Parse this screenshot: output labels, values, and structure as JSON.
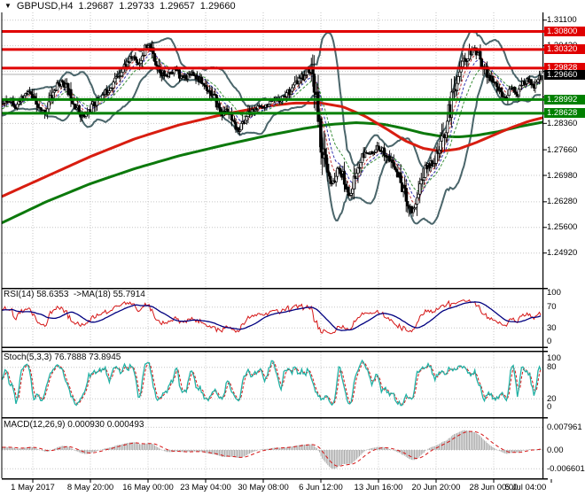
{
  "window": {
    "symbol_timeframe": "GBPUSD,H4",
    "dropdown_glyph": "▼"
  },
  "chart_data": {
    "type": "candlestick",
    "symbol": "GBPUSD",
    "timeframe": "H4",
    "ohlc": {
      "open": "1.29687",
      "high": "1.29733",
      "low": "1.29657",
      "close": "1.29660"
    },
    "current_price": "1.29660",
    "price_axis": {
      "visible_tick_labels": [
        "1.31100",
        "1.30420",
        "1.28360",
        "1.27660",
        "1.26980",
        "1.26280",
        "1.25600",
        "1.24920"
      ],
      "grid_prices": [
        1.311,
        1.3042,
        1.2974,
        1.2906,
        1.2836,
        1.2766,
        1.2698,
        1.2628,
        1.256,
        1.2492
      ],
      "range_top": 1.3131,
      "range_bottom": 1.2402
    },
    "time_axis": {
      "labels": [
        "1 May 2017",
        "8 May 20:00",
        "16 May 00:00",
        "23 May 04:00",
        "30 May 08:00",
        "6 Jun 12:00",
        "13 Jun 16:00",
        "20 Jun 20:00",
        "28 Jun 00:00",
        "5 Jul 04:00"
      ]
    },
    "horizontal_lines": [
      {
        "price": 1.308,
        "label": "1.30800",
        "color": "#e00000",
        "kind": "resistance"
      },
      {
        "price": 1.3032,
        "label": "1.30320",
        "color": "#e00000",
        "kind": "resistance"
      },
      {
        "price": 1.29828,
        "label": "1.29828",
        "color": "#e00000",
        "kind": "resistance"
      },
      {
        "price": 1.28992,
        "label": "1.28992",
        "color": "#008000",
        "kind": "support"
      },
      {
        "price": 1.28628,
        "label": "1.28628",
        "color": "#008000",
        "kind": "support"
      }
    ],
    "current_price_badge": {
      "label": "1.29660",
      "bg": "#000000"
    },
    "price_path_anchors": [
      [
        0,
        1.2888
      ],
      [
        10,
        1.29
      ],
      [
        16,
        1.2878
      ],
      [
        24,
        1.2905
      ],
      [
        30,
        1.292
      ],
      [
        36,
        1.2895
      ],
      [
        44,
        1.2866
      ],
      [
        50,
        1.2872
      ],
      [
        56,
        1.2912
      ],
      [
        62,
        1.2935
      ],
      [
        68,
        1.2948
      ],
      [
        74,
        1.2925
      ],
      [
        80,
        1.2898
      ],
      [
        86,
        1.287
      ],
      [
        93,
        1.2852
      ],
      [
        100,
        1.2878
      ],
      [
        108,
        1.2898
      ],
      [
        116,
        1.2915
      ],
      [
        124,
        1.294
      ],
      [
        132,
        1.2968
      ],
      [
        140,
        1.2995
      ],
      [
        148,
        1.3015
      ],
      [
        154,
        1.2992
      ],
      [
        160,
        1.303
      ],
      [
        166,
        1.3042
      ],
      [
        172,
        1.3008
      ],
      [
        178,
        1.2982
      ],
      [
        184,
        1.2958
      ],
      [
        190,
        1.2972
      ],
      [
        196,
        1.2982
      ],
      [
        202,
        1.2955
      ],
      [
        208,
        1.2962
      ],
      [
        214,
        1.2972
      ],
      [
        220,
        1.2958
      ],
      [
        228,
        1.2938
      ],
      [
        236,
        1.2916
      ],
      [
        242,
        1.289
      ],
      [
        248,
        1.2862
      ],
      [
        254,
        1.2872
      ],
      [
        260,
        1.2832
      ],
      [
        266,
        1.2818
      ],
      [
        272,
        1.2838
      ],
      [
        278,
        1.2862
      ],
      [
        284,
        1.2872
      ],
      [
        290,
        1.2878
      ],
      [
        298,
        1.2885
      ],
      [
        306,
        1.2892
      ],
      [
        314,
        1.2902
      ],
      [
        322,
        1.2918
      ],
      [
        330,
        1.2938
      ],
      [
        338,
        1.2958
      ],
      [
        346,
        1.2978
      ],
      [
        351,
        1.2962
      ],
      [
        355,
        1.289
      ],
      [
        359,
        1.28
      ],
      [
        363,
        1.2745
      ],
      [
        367,
        1.2705
      ],
      [
        371,
        1.2668
      ],
      [
        375,
        1.269
      ],
      [
        379,
        1.2715
      ],
      [
        383,
        1.2702
      ],
      [
        387,
        1.2672
      ],
      [
        391,
        1.2645
      ],
      [
        395,
        1.2668
      ],
      [
        400,
        1.2705
      ],
      [
        406,
        1.2742
      ],
      [
        412,
        1.2762
      ],
      [
        418,
        1.2752
      ],
      [
        424,
        1.2772
      ],
      [
        430,
        1.2762
      ],
      [
        436,
        1.2742
      ],
      [
        442,
        1.2722
      ],
      [
        448,
        1.2692
      ],
      [
        453,
        1.2658
      ],
      [
        458,
        1.2625
      ],
      [
        462,
        1.2602
      ],
      [
        466,
        1.2622
      ],
      [
        470,
        1.2662
      ],
      [
        474,
        1.2692
      ],
      [
        479,
        1.2722
      ],
      [
        485,
        1.2732
      ],
      [
        491,
        1.2752
      ],
      [
        497,
        1.2792
      ],
      [
        503,
        1.2852
      ],
      [
        509,
        1.2922
      ],
      [
        515,
        1.2972
      ],
      [
        521,
        1.3002
      ],
      [
        527,
        1.3022
      ],
      [
        533,
        1.3032
      ],
      [
        539,
        1.3012
      ],
      [
        545,
        1.2978
      ],
      [
        551,
        1.2952
      ],
      [
        557,
        1.2936
      ],
      [
        563,
        1.292
      ],
      [
        569,
        1.2906
      ],
      [
        575,
        1.2932
      ],
      [
        581,
        1.2912
      ],
      [
        587,
        1.2942
      ],
      [
        593,
        1.2952
      ],
      [
        599,
        1.2932
      ],
      [
        605,
        1.2952
      ],
      [
        612,
        1.2966
      ]
    ],
    "ma_long_red_anchors": [
      [
        0,
        1.2642
      ],
      [
        50,
        1.2695
      ],
      [
        100,
        1.2748
      ],
      [
        150,
        1.2795
      ],
      [
        200,
        1.2832
      ],
      [
        250,
        1.286
      ],
      [
        300,
        1.2882
      ],
      [
        330,
        1.289
      ],
      [
        360,
        1.289
      ],
      [
        385,
        1.288
      ],
      [
        410,
        1.2855
      ],
      [
        435,
        1.282
      ],
      [
        455,
        1.279
      ],
      [
        475,
        1.277
      ],
      [
        495,
        1.2762
      ],
      [
        515,
        1.2768
      ],
      [
        535,
        1.2785
      ],
      [
        555,
        1.2805
      ],
      [
        575,
        1.2825
      ],
      [
        595,
        1.2842
      ],
      [
        612,
        1.2852
      ]
    ],
    "ma_long_green_anchors": [
      [
        0,
        1.2572
      ],
      [
        50,
        1.2628
      ],
      [
        100,
        1.2676
      ],
      [
        150,
        1.2716
      ],
      [
        200,
        1.275
      ],
      [
        250,
        1.2778
      ],
      [
        300,
        1.2804
      ],
      [
        340,
        1.2822
      ],
      [
        370,
        1.2833
      ],
      [
        400,
        1.2838
      ],
      [
        430,
        1.2834
      ],
      [
        455,
        1.2822
      ],
      [
        475,
        1.281
      ],
      [
        495,
        1.2802
      ],
      [
        515,
        1.28
      ],
      [
        535,
        1.2804
      ],
      [
        560,
        1.2814
      ],
      [
        585,
        1.2828
      ],
      [
        612,
        1.284
      ]
    ],
    "indicators": {
      "bollinger": {
        "period": 20,
        "deviation": 2,
        "color": "#4a656a"
      },
      "ma_short": [
        {
          "period": 8,
          "color": "#c23b3b"
        },
        {
          "period": 13,
          "color": "#3434ad"
        },
        {
          "period": 21,
          "color": "#3b8f3b"
        }
      ],
      "rsi": {
        "label": "RSI(14) 58.6353  ->MA(18) 55.7914",
        "period": 14,
        "ma_period": 18,
        "value": 58.6353,
        "ma_value": 55.7914,
        "levels": [
          70,
          30
        ],
        "axis_labels": [
          "100",
          "70",
          "30",
          "0"
        ],
        "line_color": "#d51616",
        "ma_color": "#000080"
      },
      "stochastic": {
        "label": "Stoch(5,3,3) 76.7888 73.8945",
        "k_period": 5,
        "d_period": 3,
        "slowing": 3,
        "k_value": 76.7888,
        "d_value": 73.8945,
        "levels": [
          80,
          20
        ],
        "axis_labels": [
          "100",
          "80",
          "20",
          "0"
        ],
        "k_color": "#21b1a4",
        "d_color": "#d51616"
      },
      "macd": {
        "label": "MACD(12,26,9) 0.000930 0.000493",
        "fast": 12,
        "slow": 26,
        "signal_period": 9,
        "value": 0.00093,
        "signal_value": 0.000493,
        "axis_labels": [
          "0.007961",
          "0.00",
          "-0.006601"
        ],
        "axis_values": [
          0.007961,
          0,
          -0.006601
        ],
        "hist_color": "#a8a8a8",
        "signal_color": "#d51616"
      }
    },
    "colors": {
      "background": "#ffffff",
      "grid": "#c6c6c6",
      "candle_bull_fill": "#ffffff",
      "candle_bear_fill": "#000000",
      "candle_border": "#000000",
      "current_price_line": "#b0b0b0",
      "ma_long_red": "#d81d10",
      "ma_long_green": "#0c790c"
    }
  }
}
